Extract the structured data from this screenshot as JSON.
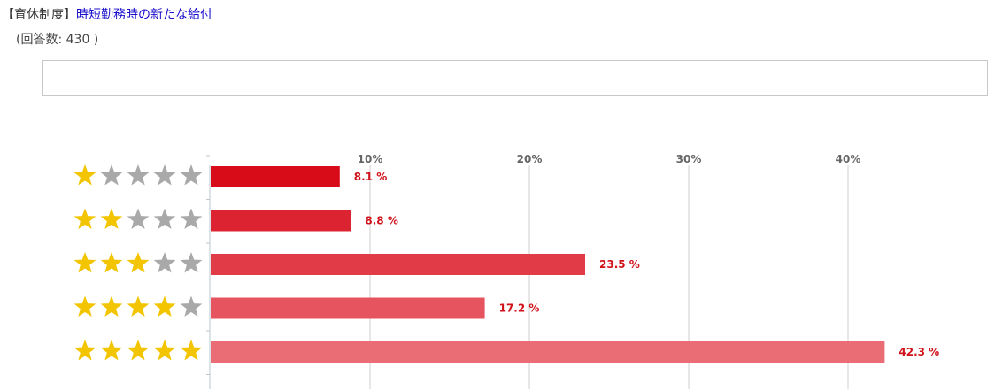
{
  "header": {
    "category": "【育休制度】",
    "title": "時短勤務時の新たな給付"
  },
  "response_count_text": "(回答数: 430 )",
  "colors": {
    "star_on": "#f2c500",
    "star_off": "#a9a9a9",
    "value_text": "#d0121b",
    "bars": [
      "#d80c18",
      "#dc2331",
      "#e03b47",
      "#e5545f",
      "#ea6c75"
    ]
  },
  "chart_data": {
    "type": "bar",
    "orientation": "horizontal",
    "categories": [
      {
        "stars": 1
      },
      {
        "stars": 2
      },
      {
        "stars": 3
      },
      {
        "stars": 4
      },
      {
        "stars": 5
      }
    ],
    "values": [
      8.1,
      8.8,
      23.5,
      17.2,
      42.3
    ],
    "value_labels": [
      "8.1 %",
      "8.8 %",
      "23.5 %",
      "17.2 %",
      "42.3 %"
    ],
    "max_stars": 5,
    "xlim": [
      0,
      45
    ],
    "ticks": [
      10,
      20,
      30,
      40
    ],
    "tick_labels": [
      "10%",
      "20%",
      "30%",
      "40%"
    ],
    "grid": true
  }
}
